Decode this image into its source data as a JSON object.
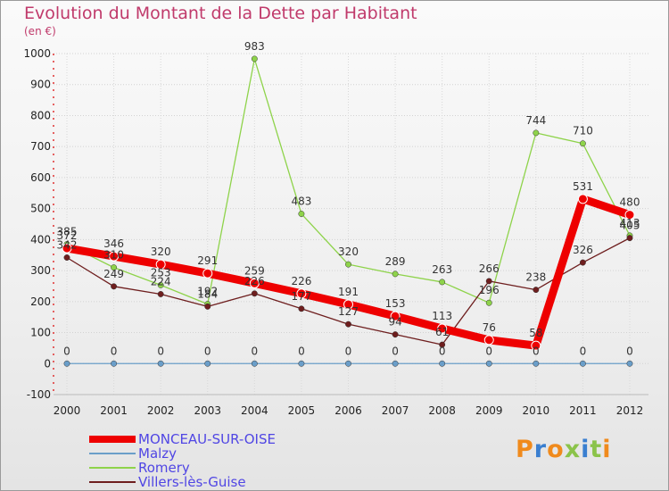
{
  "title": "Evolution du Montant de la Dette par Habitant",
  "subtitle": "(en €)",
  "logo": "Proxiti",
  "chart_data": {
    "type": "line",
    "title": "Evolution du Montant de la Dette par Habitant",
    "ylabel": "(en €)",
    "xlabel": "",
    "x": [
      "2000",
      "2001",
      "2002",
      "2003",
      "2004",
      "2005",
      "2006",
      "2007",
      "2008",
      "2009",
      "2010",
      "2011",
      "2012"
    ],
    "ylim": [
      -100,
      1000
    ],
    "yticks": [
      "-100",
      "0",
      "100",
      "200",
      "300",
      "400",
      "500",
      "600",
      "700",
      "800",
      "900",
      "1000"
    ],
    "legend_position": "bottom-left",
    "series": [
      {
        "name": "MONCEAU-SUR-OISE",
        "color": "#ee0000",
        "values": [
          372,
          346,
          320,
          291,
          259,
          226,
          191,
          153,
          113,
          76,
          58,
          531,
          480
        ]
      },
      {
        "name": "Malzy",
        "color": "#6a9ec9",
        "values": [
          0,
          0,
          0,
          0,
          0,
          0,
          0,
          0,
          0,
          0,
          0,
          0,
          0
        ]
      },
      {
        "name": "Romery",
        "color": "#8ed34a",
        "values": [
          385,
          310,
          253,
          192,
          983,
          483,
          320,
          289,
          263,
          196,
          744,
          710,
          413
        ]
      },
      {
        "name": "Villers-lès-Guise",
        "color": "#6e1e1e",
        "values": [
          342,
          249,
          224,
          184,
          226,
          177,
          127,
          94,
          61,
          266,
          238,
          326,
          405
        ]
      }
    ]
  }
}
